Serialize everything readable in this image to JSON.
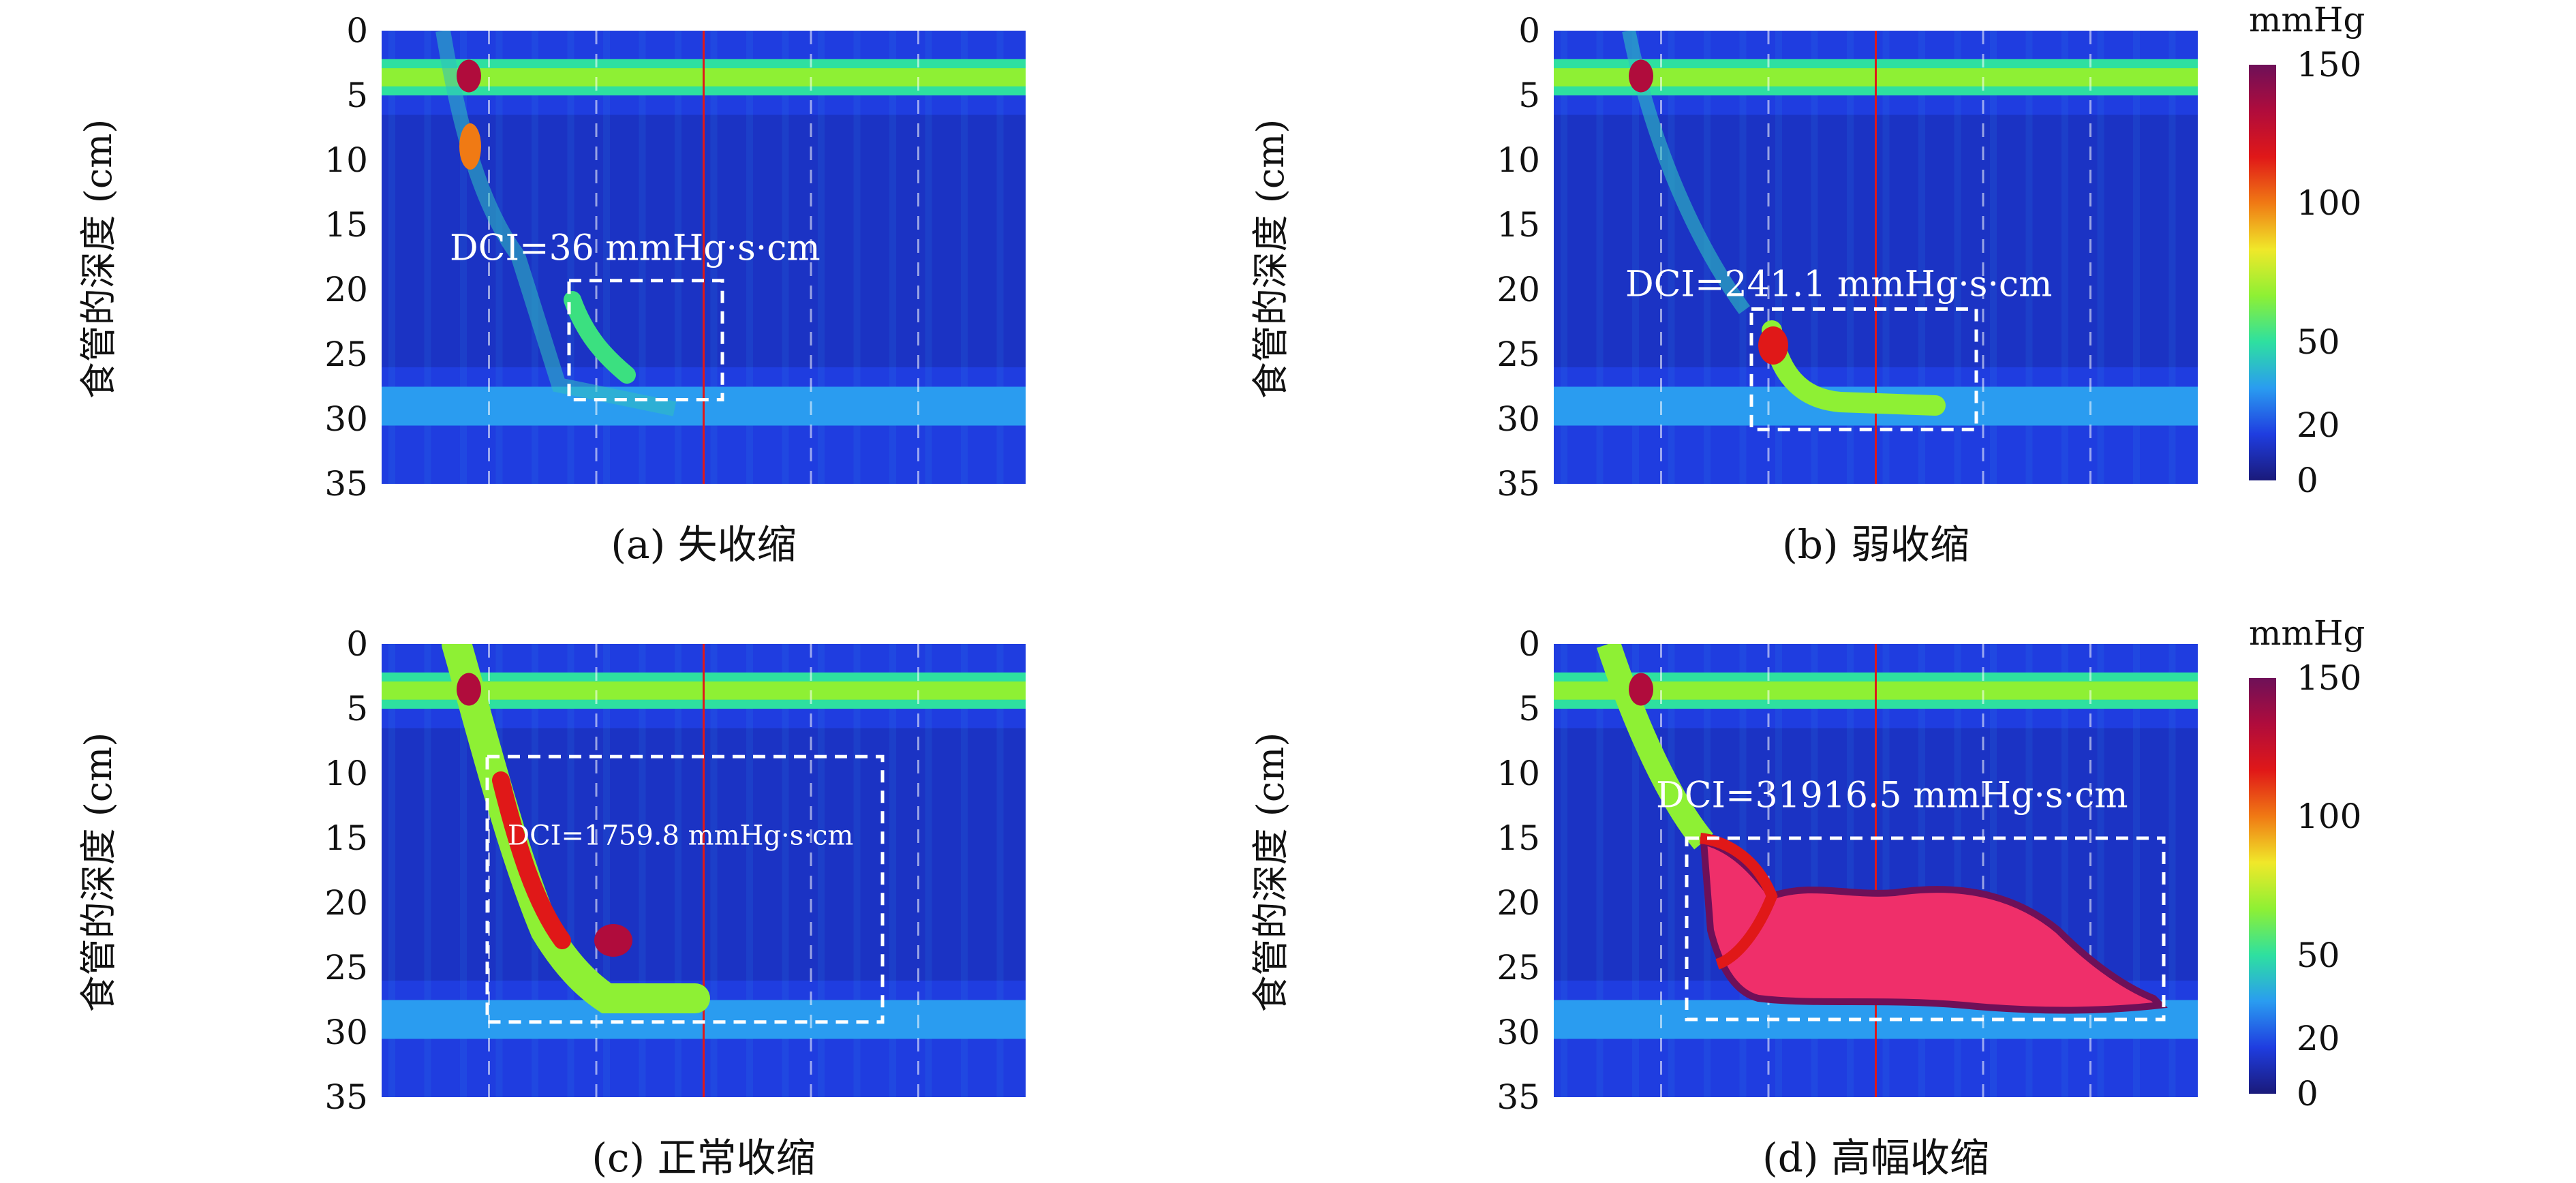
{
  "colorbar": {
    "title": "mmHg",
    "ticks": [
      0,
      20,
      50,
      100,
      150
    ],
    "range": [
      0,
      150
    ],
    "colors": [
      "#1a1a7a",
      "#1f3de0",
      "#2a9cf0",
      "#2ee0a0",
      "#8ef034",
      "#f0e82a",
      "#f07a14",
      "#e01818",
      "#b00c3c",
      "#6e1058"
    ]
  },
  "chart_data": [
    {
      "type": "heatmap",
      "caption": "(a) 失收缩",
      "ylabel": "食管的深度 (cm)",
      "yticks": [
        0,
        5,
        10,
        15,
        20,
        25,
        30,
        35
      ],
      "ylim": [
        0,
        35
      ],
      "annotation": "DCI=36 mmHg·s·cm",
      "dci": 36,
      "dci_unit": "mmHg·s·cm",
      "contraction": "none"
    },
    {
      "type": "heatmap",
      "caption": "(b) 弱收缩",
      "ylabel": "食管的深度 (cm)",
      "yticks": [
        0,
        5,
        10,
        15,
        20,
        25,
        30,
        35
      ],
      "ylim": [
        0,
        35
      ],
      "annotation": "DCI=241.1 mmHg·s·cm",
      "dci": 241.1,
      "dci_unit": "mmHg·s·cm",
      "contraction": "weak"
    },
    {
      "type": "heatmap",
      "caption": "(c) 正常收缩",
      "ylabel": "食管的深度 (cm)",
      "yticks": [
        0,
        5,
        10,
        15,
        20,
        25,
        30,
        35
      ],
      "ylim": [
        0,
        35
      ],
      "annotation": "DCI=1759.8 mmHg·s·cm",
      "dci": 1759.8,
      "dci_unit": "mmHg·s·cm",
      "contraction": "normal"
    },
    {
      "type": "heatmap",
      "caption": "(d) 高幅收缩",
      "ylabel": "食管的深度 (cm)",
      "yticks": [
        0,
        5,
        10,
        15,
        20,
        25,
        30,
        35
      ],
      "ylim": [
        0,
        35
      ],
      "annotation": "DCI=31916.5 mmHg·s·cm",
      "dci": 31916.5,
      "dci_unit": "mmHg·s·cm",
      "contraction": "hypercontractile"
    }
  ]
}
